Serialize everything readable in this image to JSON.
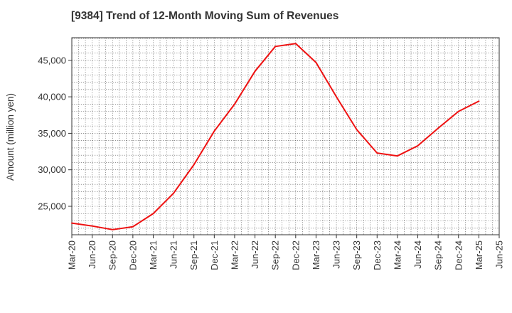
{
  "chart_data": {
    "type": "line",
    "title": "[9384]  Trend of 12-Month Moving Sum of Revenues",
    "xlabel": "",
    "ylabel": "Amount (million yen)",
    "x_tick_labels": [
      "Mar-20",
      "Jun-20",
      "Sep-20",
      "Dec-20",
      "Mar-21",
      "Jun-21",
      "Sep-21",
      "Dec-21",
      "Mar-22",
      "Jun-22",
      "Sep-22",
      "Dec-22",
      "Mar-23",
      "Jun-23",
      "Sep-23",
      "Dec-23",
      "Mar-24",
      "Jun-24",
      "Sep-24",
      "Dec-24",
      "Mar-25",
      "Jun-25"
    ],
    "y_ticks": [
      25000,
      30000,
      35000,
      40000,
      45000
    ],
    "y_tick_labels": [
      "25,000",
      "30,000",
      "35,000",
      "40,000",
      "45,000"
    ],
    "ylim": [
      21100,
      48100
    ],
    "grid": true,
    "line_color": "#ee1111",
    "series": [
      {
        "x": [
          "Mar-20",
          "Jun-20",
          "Sep-20",
          "Dec-20",
          "Mar-21",
          "Jun-21",
          "Sep-21",
          "Dec-21",
          "Mar-22",
          "Jun-22",
          "Sep-22",
          "Dec-22",
          "Mar-23",
          "Jun-23",
          "Sep-23",
          "Dec-23",
          "Mar-24",
          "Jun-24",
          "Sep-24",
          "Dec-24",
          "Mar-25"
        ],
        "values": [
          22700,
          22300,
          21800,
          22200,
          24000,
          26800,
          30700,
          35300,
          39000,
          43500,
          46900,
          47300,
          44700,
          40000,
          35500,
          32300,
          31900,
          33300,
          35700,
          38000,
          39400
        ]
      }
    ]
  }
}
